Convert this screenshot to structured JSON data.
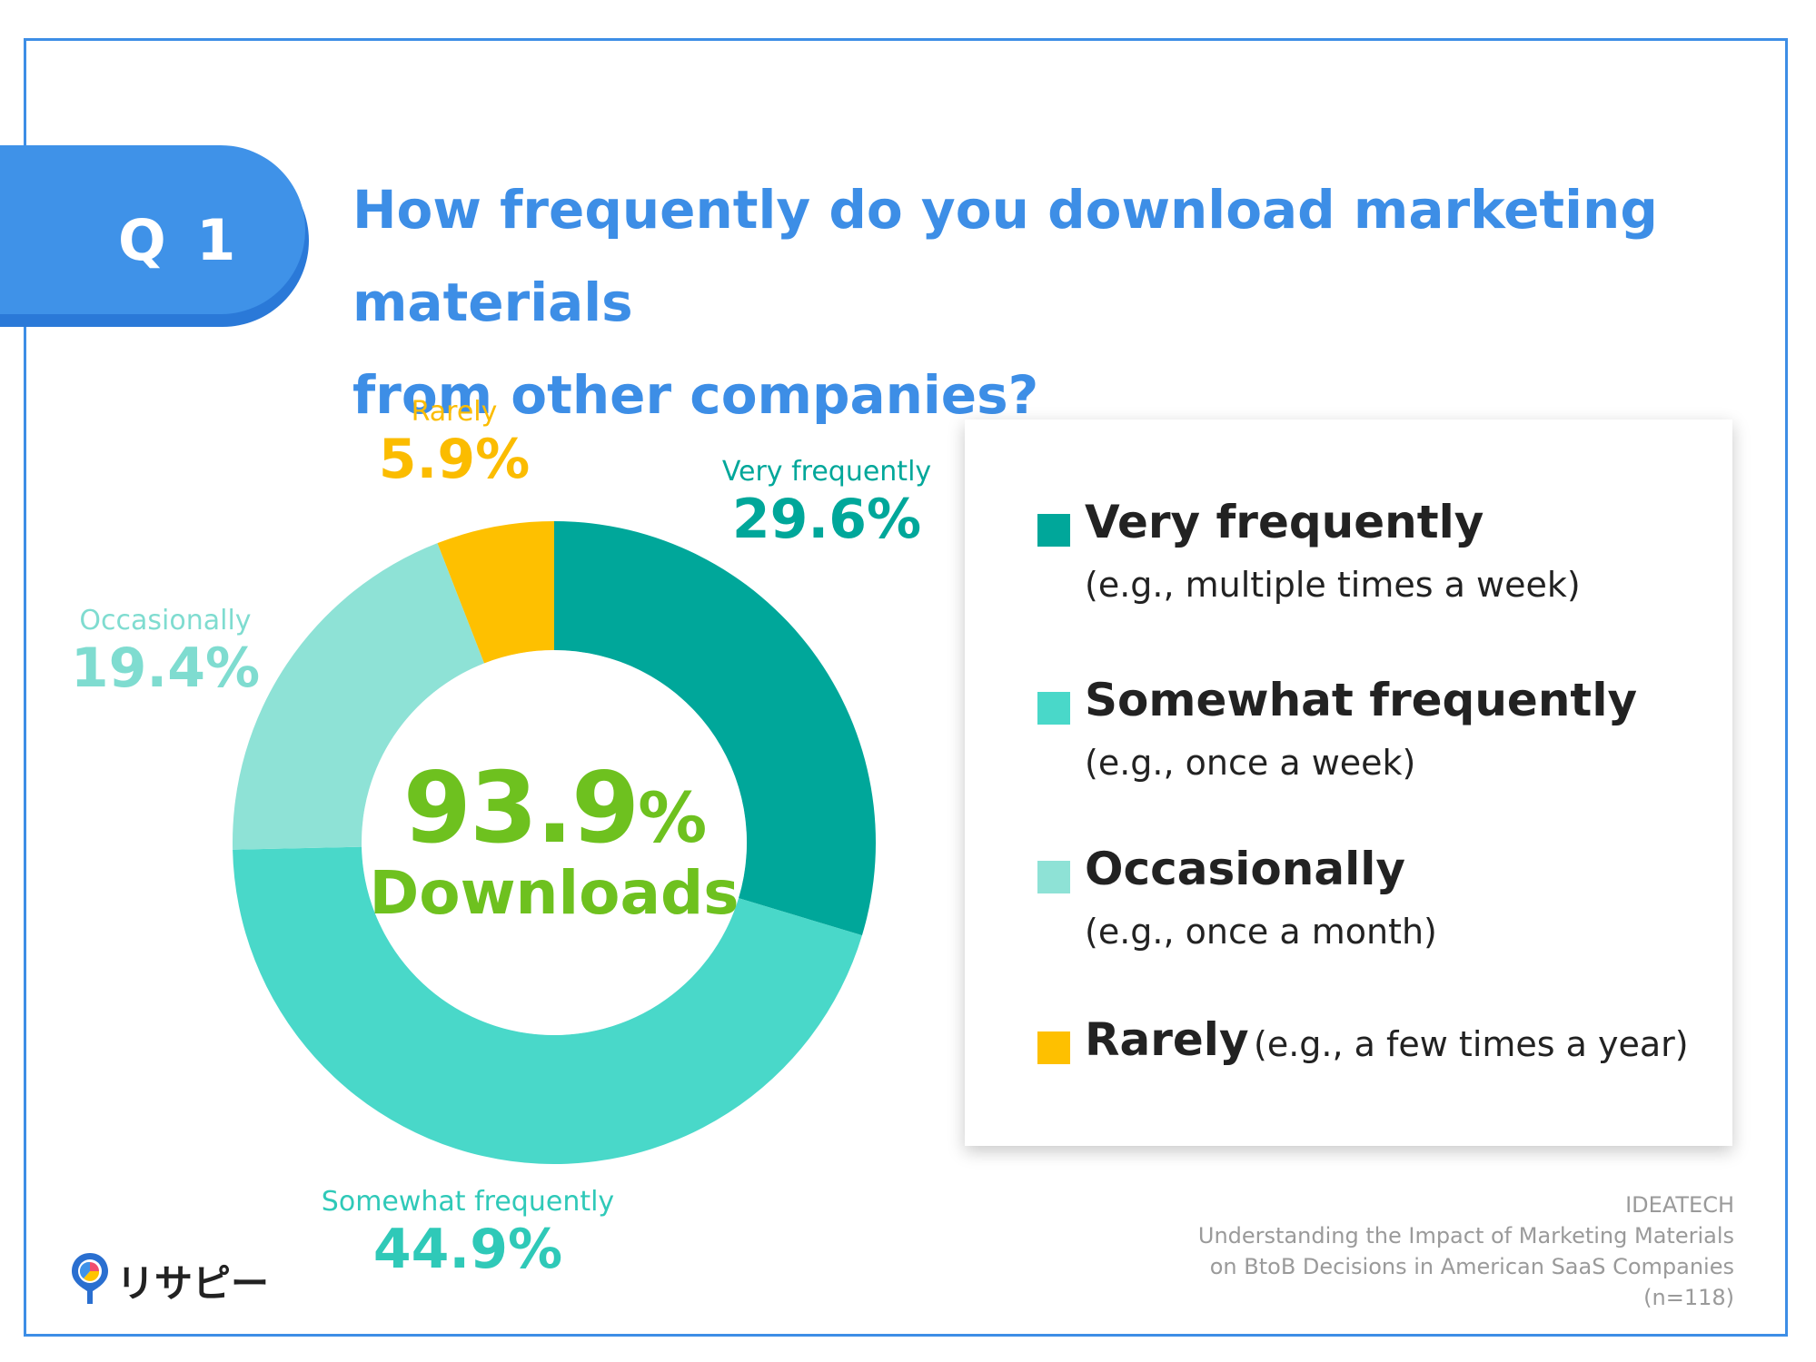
{
  "badge": {
    "label": "Q 1",
    "color": "#3f92e8"
  },
  "question": {
    "line1": "How frequently do you download marketing materials",
    "line2": "from other companies?"
  },
  "center": {
    "value": "93.9",
    "unit": "%",
    "label": "Downloads"
  },
  "chart_data": {
    "type": "pie",
    "variant": "donut",
    "start_angle_deg": 0,
    "direction": "clockwise",
    "slices": [
      {
        "name": "Very frequently",
        "value": 29.6,
        "label": "29.6%",
        "color": "#00a79a"
      },
      {
        "name": "Somewhat frequently",
        "value": 44.9,
        "label": "44.9%",
        "color": "#49d8c9"
      },
      {
        "name": "Occasionally",
        "value": 19.4,
        "label": "19.4%",
        "color": "#8ee2d6"
      },
      {
        "name": "Rarely",
        "value": 5.9,
        "label": "5.9%",
        "color": "#fec000"
      }
    ],
    "label_colors": {
      "Very frequently": "#00a79a",
      "Somewhat frequently": "#2fc9b8",
      "Occasionally": "#7fdcd0",
      "Rarely": "#fbbc00"
    }
  },
  "legend": [
    {
      "title": "Very frequently",
      "sub": "(e.g., multiple times a week)",
      "color": "#00a79a"
    },
    {
      "title": "Somewhat frequently",
      "sub": "(e.g., once a week)",
      "color": "#49d8c9"
    },
    {
      "title": "Occasionally",
      "sub": "(e.g., once a month)",
      "color": "#8ee2d6"
    },
    {
      "title": "Rarely",
      "sub": "(e.g., a few times a year)",
      "color": "#fec000"
    }
  ],
  "source": {
    "org": "IDEATECH",
    "line1": "Understanding the Impact of Marketing Materials",
    "line2": "on BtoB Decisions in American SaaS Companies",
    "n": "(n=118)"
  },
  "logo": {
    "text": "リサピー"
  }
}
